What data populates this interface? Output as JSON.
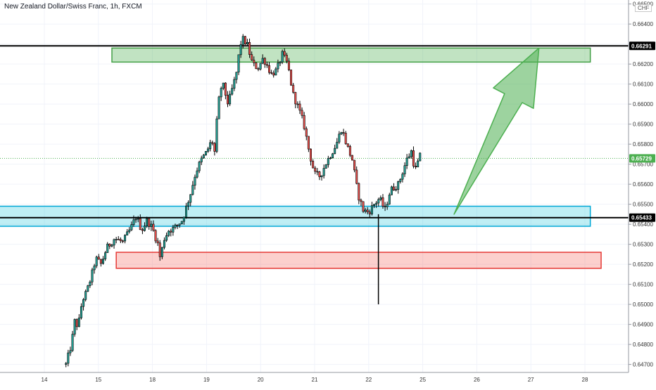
{
  "chart_data": {
    "type": "candlestick",
    "title": "New Zealand Dollar/Swiss Franc, 1h, FXCM",
    "currency": "CHF",
    "ylim": [
      0.6466,
      0.6652
    ],
    "y_ticks": [
      "0.64700",
      "0.64800",
      "0.64900",
      "0.65000",
      "0.65100",
      "0.65200",
      "0.65300",
      "0.65400",
      "0.65500",
      "0.65600",
      "0.65700",
      "0.65800",
      "0.65900",
      "0.66000",
      "0.66100",
      "0.66200",
      "0.66300",
      "0.66400",
      "0.66500"
    ],
    "y_tick_values": [
      0.647,
      0.648,
      0.649,
      0.65,
      0.651,
      0.652,
      0.653,
      0.654,
      0.655,
      0.656,
      0.657,
      0.658,
      0.659,
      0.66,
      0.661,
      0.662,
      0.663,
      0.664,
      0.665
    ],
    "x_ticks": [
      "14",
      "15",
      "18",
      "19",
      "20",
      "21",
      "22",
      "25",
      "26",
      "27",
      "28"
    ],
    "x_tick_sessions": [
      0,
      1,
      2,
      3,
      4,
      5,
      6,
      7,
      8,
      9,
      10
    ],
    "price_labels": [
      {
        "name": "resistance",
        "text": "0.66291",
        "value": 0.66291,
        "color": "#000000"
      },
      {
        "name": "last-price",
        "text": "0.65729",
        "value": 0.65729,
        "color": "#4caf50"
      },
      {
        "name": "support",
        "text": "0.65433",
        "value": 0.65433,
        "color": "#000000"
      }
    ],
    "zones": [
      {
        "name": "supply-zone",
        "from_session": 1.25,
        "to_session": 10.1,
        "low": 0.6621,
        "high": 0.6628,
        "fill": "rgba(76,175,80,0.35)",
        "stroke": "#43a047"
      },
      {
        "name": "support-zone",
        "from_session": -1,
        "to_session": 10.1,
        "low": 0.6539,
        "high": 0.6549,
        "fill": "rgba(0,188,212,0.25)",
        "stroke": "#00a8d6"
      },
      {
        "name": "demand-zone",
        "from_session": 1.33,
        "to_session": 10.3,
        "low": 0.6518,
        "high": 0.6526,
        "fill": "rgba(244,67,54,0.25)",
        "stroke": "#e53935"
      }
    ],
    "hlines": [
      {
        "name": "resistance-line",
        "value": 0.66291,
        "color": "#000000"
      },
      {
        "name": "support-line",
        "value": 0.65433,
        "color": "#000000"
      },
      {
        "name": "last-price-line",
        "value": 0.65729,
        "color": "#4caf50",
        "dotted": true
      }
    ],
    "arrow": {
      "from_session": 7.58,
      "from_value": 0.6545,
      "to_session": 9.15,
      "to_value": 0.6628,
      "color": "#4caf50"
    },
    "bull_color": "#26a69a",
    "bear_color": "#ef5350",
    "wick_color": "#000000",
    "path": [
      [
        0.4,
        0.647
      ],
      [
        0.5,
        0.648
      ],
      [
        0.57,
        0.6493
      ],
      [
        0.62,
        0.6488
      ],
      [
        0.7,
        0.6502
      ],
      [
        0.78,
        0.6506
      ],
      [
        0.88,
        0.6515
      ],
      [
        0.95,
        0.6523
      ],
      [
        1.05,
        0.652
      ],
      [
        1.15,
        0.6528
      ],
      [
        1.3,
        0.6533
      ],
      [
        1.45,
        0.6531
      ],
      [
        1.6,
        0.6538
      ],
      [
        1.7,
        0.6544
      ],
      [
        1.8,
        0.6537
      ],
      [
        1.9,
        0.6542
      ],
      [
        2.0,
        0.6538
      ],
      [
        2.1,
        0.653
      ],
      [
        2.15,
        0.6522
      ],
      [
        2.2,
        0.6532
      ],
      [
        2.3,
        0.6537
      ],
      [
        2.4,
        0.6538
      ],
      [
        2.55,
        0.6542
      ],
      [
        2.7,
        0.6555
      ],
      [
        2.8,
        0.6566
      ],
      [
        2.9,
        0.6572
      ],
      [
        3.0,
        0.6576
      ],
      [
        3.1,
        0.6582
      ],
      [
        3.15,
        0.6576
      ],
      [
        3.2,
        0.6595
      ],
      [
        3.25,
        0.6607
      ],
      [
        3.3,
        0.661
      ],
      [
        3.4,
        0.66
      ],
      [
        3.45,
        0.6605
      ],
      [
        3.55,
        0.6615
      ],
      [
        3.6,
        0.6625
      ],
      [
        3.65,
        0.6633
      ],
      [
        3.75,
        0.663
      ],
      [
        3.85,
        0.662
      ],
      [
        3.95,
        0.6618
      ],
      [
        4.05,
        0.6623
      ],
      [
        4.2,
        0.6615
      ],
      [
        4.3,
        0.6617
      ],
      [
        4.4,
        0.6625
      ],
      [
        4.5,
        0.662
      ],
      [
        4.6,
        0.6605
      ],
      [
        4.7,
        0.6598
      ],
      [
        4.8,
        0.659
      ],
      [
        4.9,
        0.6576
      ],
      [
        5.0,
        0.6565
      ],
      [
        5.1,
        0.6564
      ],
      [
        5.2,
        0.657
      ],
      [
        5.3,
        0.6575
      ],
      [
        5.4,
        0.658
      ],
      [
        5.5,
        0.6588
      ],
      [
        5.6,
        0.6579
      ],
      [
        5.7,
        0.6572
      ],
      [
        5.8,
        0.6555
      ],
      [
        5.9,
        0.6547
      ],
      [
        6.0,
        0.6546
      ],
      [
        6.1,
        0.655
      ],
      [
        6.2,
        0.6553
      ],
      [
        6.3,
        0.6547
      ],
      [
        6.4,
        0.6557
      ],
      [
        6.55,
        0.656
      ],
      [
        6.7,
        0.6572
      ],
      [
        6.8,
        0.6577
      ],
      [
        6.85,
        0.6566
      ],
      [
        6.95,
        0.6574
      ]
    ],
    "spike": {
      "session": 6.18,
      "low": 0.65
    }
  }
}
